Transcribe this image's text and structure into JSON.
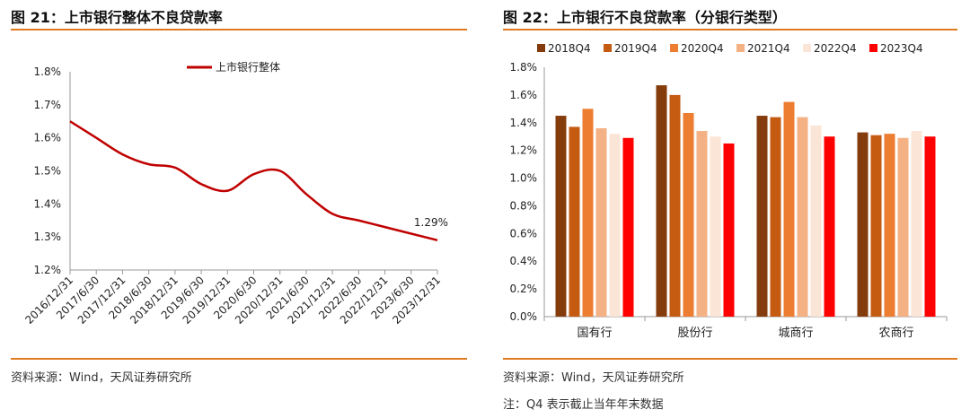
{
  "left": {
    "title": "图 21：上市银行整体不良贷款率",
    "source": "资料来源：Wind，天风证券研究所"
  },
  "right": {
    "title": "图 22：上市银行不良贷款率（分银行类型）",
    "source": "资料来源：Wind，天风证券研究所",
    "note": "注：Q4 表示截止当年年末数据"
  },
  "colors": {
    "accent": "#e07a1f"
  },
  "chart_data": [
    {
      "type": "line",
      "title": "",
      "xlabel": "",
      "ylabel": "",
      "ylim": [
        1.2,
        1.8
      ],
      "yticks": [
        "1.2%",
        "1.3%",
        "1.4%",
        "1.5%",
        "1.6%",
        "1.7%",
        "1.8%"
      ],
      "ytick_values": [
        1.2,
        1.3,
        1.4,
        1.5,
        1.6,
        1.7,
        1.8
      ],
      "x": [
        "2016/12/31",
        "2017/6/30",
        "2017/12/31",
        "2018/6/30",
        "2018/12/31",
        "2019/6/30",
        "2019/12/31",
        "2020/6/30",
        "2020/12/31",
        "2021/6/30",
        "2021/12/31",
        "2022/6/30",
        "2022/12/31",
        "2023/6/30",
        "2023/12/31"
      ],
      "series": [
        {
          "name": "上市银行整体",
          "color": "#c00000",
          "values": [
            1.65,
            1.6,
            1.55,
            1.52,
            1.51,
            1.46,
            1.44,
            1.49,
            1.5,
            1.43,
            1.37,
            1.35,
            1.33,
            1.31,
            1.29
          ]
        }
      ],
      "annotation": "1.29%",
      "grid": false,
      "legend": "top"
    },
    {
      "type": "bar",
      "title": "",
      "xlabel": "",
      "ylabel": "",
      "ylim": [
        0.0,
        1.8
      ],
      "yticks": [
        "0.0%",
        "0.2%",
        "0.4%",
        "0.6%",
        "0.8%",
        "1.0%",
        "1.2%",
        "1.4%",
        "1.6%",
        "1.8%"
      ],
      "ytick_values": [
        0.0,
        0.2,
        0.4,
        0.6,
        0.8,
        1.0,
        1.2,
        1.4,
        1.6,
        1.8
      ],
      "categories": [
        "国有行",
        "股份行",
        "城商行",
        "农商行"
      ],
      "series": [
        {
          "name": "2018Q4",
          "color": "#843c0c",
          "values": [
            1.45,
            1.67,
            1.45,
            1.33
          ]
        },
        {
          "name": "2019Q4",
          "color": "#c55a11",
          "values": [
            1.37,
            1.6,
            1.44,
            1.31
          ]
        },
        {
          "name": "2020Q4",
          "color": "#ed7d31",
          "values": [
            1.5,
            1.47,
            1.55,
            1.32
          ]
        },
        {
          "name": "2021Q4",
          "color": "#f4b183",
          "values": [
            1.36,
            1.34,
            1.44,
            1.29
          ]
        },
        {
          "name": "2022Q4",
          "color": "#fbe5d6",
          "values": [
            1.32,
            1.3,
            1.38,
            1.34
          ]
        },
        {
          "name": "2023Q4",
          "color": "#ff0000",
          "values": [
            1.29,
            1.25,
            1.3,
            1.3
          ]
        }
      ],
      "grid": false,
      "legend": "top"
    }
  ]
}
